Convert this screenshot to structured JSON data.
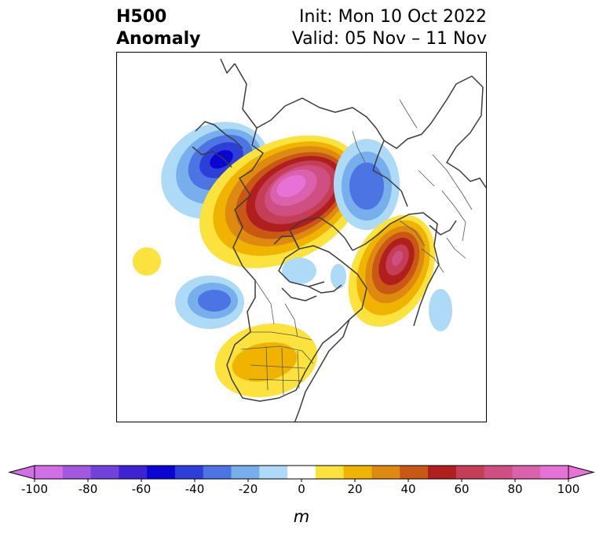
{
  "title": {
    "left_line1": "H500",
    "left_line2": "Anomaly",
    "right_line1": "Init: Mon 10 Oct 2022",
    "right_line2": "Valid: 05 Nov – 11 Nov"
  },
  "colorbar": {
    "units": "m",
    "ticks": [
      "-100",
      "-80",
      "-60",
      "-40",
      "-20",
      "0",
      "20",
      "40",
      "60",
      "80",
      "100"
    ],
    "colors": [
      "#d36fe6",
      "#a458e0",
      "#7142d9",
      "#3f22d4",
      "#0a05d0",
      "#2c3fd8",
      "#4c74e2",
      "#77aeec",
      "#acdaf7",
      "#ffffff",
      "#fbe23d",
      "#f0b400",
      "#de8a10",
      "#c85814",
      "#b01e1e",
      "#c43f55",
      "#cf4f82",
      "#da61ac",
      "#e871d8"
    ],
    "extend_min_color": "#d36fe6",
    "extend_max_color": "#e871d8"
  }
}
